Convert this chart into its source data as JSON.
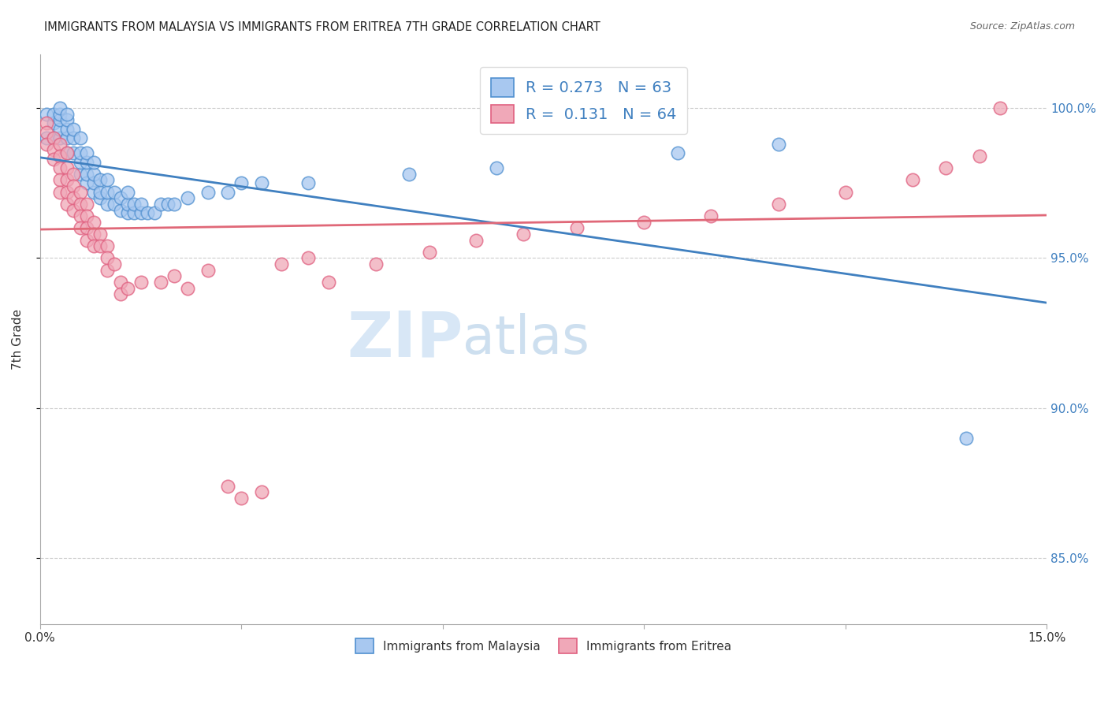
{
  "title": "IMMIGRANTS FROM MALAYSIA VS IMMIGRANTS FROM ERITREA 7TH GRADE CORRELATION CHART",
  "source": "Source: ZipAtlas.com",
  "ylabel": "7th Grade",
  "xlim": [
    0.0,
    0.15
  ],
  "ylim": [
    0.828,
    1.018
  ],
  "yticks": [
    0.85,
    0.9,
    0.95,
    1.0
  ],
  "ytick_labels": [
    "85.0%",
    "90.0%",
    "95.0%",
    "100.0%"
  ],
  "xticks": [
    0.0,
    0.03,
    0.06,
    0.09,
    0.12,
    0.15
  ],
  "xtick_labels": [
    "0.0%",
    "",
    "",
    "",
    "",
    "15.0%"
  ],
  "watermark_zip": "ZIP",
  "watermark_atlas": "atlas",
  "legend_r_malaysia": "0.273",
  "legend_n_malaysia": "63",
  "legend_r_eritrea": "0.131",
  "legend_n_eritrea": "64",
  "malaysia_color": "#A8C8F0",
  "eritrea_color": "#F0A8B8",
  "malaysia_edge_color": "#5090D0",
  "eritrea_edge_color": "#E06080",
  "malaysia_line_color": "#4080C0",
  "eritrea_line_color": "#E06878",
  "malaysia_x": [
    0.001,
    0.001,
    0.002,
    0.002,
    0.002,
    0.003,
    0.003,
    0.003,
    0.003,
    0.003,
    0.004,
    0.004,
    0.004,
    0.004,
    0.004,
    0.005,
    0.005,
    0.005,
    0.006,
    0.006,
    0.006,
    0.006,
    0.007,
    0.007,
    0.007,
    0.007,
    0.008,
    0.008,
    0.008,
    0.008,
    0.009,
    0.009,
    0.009,
    0.01,
    0.01,
    0.01,
    0.011,
    0.011,
    0.012,
    0.012,
    0.013,
    0.013,
    0.013,
    0.014,
    0.014,
    0.015,
    0.015,
    0.016,
    0.017,
    0.018,
    0.019,
    0.02,
    0.022,
    0.025,
    0.028,
    0.03,
    0.033,
    0.04,
    0.055,
    0.068,
    0.095,
    0.11,
    0.138
  ],
  "malaysia_y": [
    0.99,
    0.998,
    0.99,
    0.995,
    0.998,
    0.99,
    0.993,
    0.996,
    0.998,
    1.0,
    0.985,
    0.99,
    0.993,
    0.996,
    0.998,
    0.985,
    0.99,
    0.993,
    0.978,
    0.982,
    0.985,
    0.99,
    0.975,
    0.978,
    0.982,
    0.985,
    0.972,
    0.975,
    0.978,
    0.982,
    0.97,
    0.972,
    0.976,
    0.968,
    0.972,
    0.976,
    0.968,
    0.972,
    0.966,
    0.97,
    0.965,
    0.968,
    0.972,
    0.965,
    0.968,
    0.965,
    0.968,
    0.965,
    0.965,
    0.968,
    0.968,
    0.968,
    0.97,
    0.972,
    0.972,
    0.975,
    0.975,
    0.975,
    0.978,
    0.98,
    0.985,
    0.988,
    0.89
  ],
  "eritrea_x": [
    0.001,
    0.001,
    0.001,
    0.002,
    0.002,
    0.002,
    0.003,
    0.003,
    0.003,
    0.003,
    0.003,
    0.004,
    0.004,
    0.004,
    0.004,
    0.004,
    0.005,
    0.005,
    0.005,
    0.005,
    0.006,
    0.006,
    0.006,
    0.006,
    0.007,
    0.007,
    0.007,
    0.007,
    0.008,
    0.008,
    0.008,
    0.009,
    0.009,
    0.01,
    0.01,
    0.01,
    0.011,
    0.012,
    0.012,
    0.013,
    0.015,
    0.018,
    0.02,
    0.022,
    0.025,
    0.028,
    0.03,
    0.033,
    0.036,
    0.04,
    0.043,
    0.05,
    0.058,
    0.065,
    0.072,
    0.08,
    0.09,
    0.1,
    0.11,
    0.12,
    0.13,
    0.135,
    0.14,
    0.143
  ],
  "eritrea_y": [
    0.995,
    0.992,
    0.988,
    0.99,
    0.986,
    0.983,
    0.988,
    0.984,
    0.98,
    0.976,
    0.972,
    0.985,
    0.98,
    0.976,
    0.972,
    0.968,
    0.978,
    0.974,
    0.97,
    0.966,
    0.972,
    0.968,
    0.964,
    0.96,
    0.968,
    0.964,
    0.96,
    0.956,
    0.962,
    0.958,
    0.954,
    0.958,
    0.954,
    0.954,
    0.95,
    0.946,
    0.948,
    0.942,
    0.938,
    0.94,
    0.942,
    0.942,
    0.944,
    0.94,
    0.946,
    0.874,
    0.87,
    0.872,
    0.948,
    0.95,
    0.942,
    0.948,
    0.952,
    0.956,
    0.958,
    0.96,
    0.962,
    0.964,
    0.968,
    0.972,
    0.976,
    0.98,
    0.984,
    1.0
  ]
}
